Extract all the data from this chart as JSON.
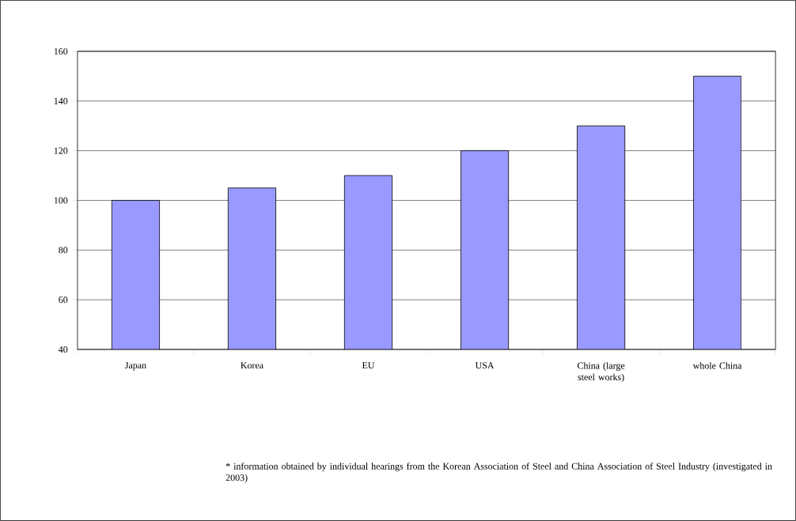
{
  "chart_data": {
    "type": "bar",
    "categories": [
      "Japan",
      "Korea",
      "EU",
      "USA",
      "China (large steel works)",
      "whole China"
    ],
    "values": [
      100,
      105,
      110,
      120,
      130,
      150
    ],
    "color": "#9999ff",
    "ylim": [
      40,
      160
    ],
    "yticks": [
      40,
      60,
      80,
      100,
      120,
      140,
      160
    ],
    "grid": "y",
    "annotations": [
      "* information obtained by individual hearings from the Korean Association of Steel and China Association of Steel Industry (investigated in 2003)"
    ]
  }
}
